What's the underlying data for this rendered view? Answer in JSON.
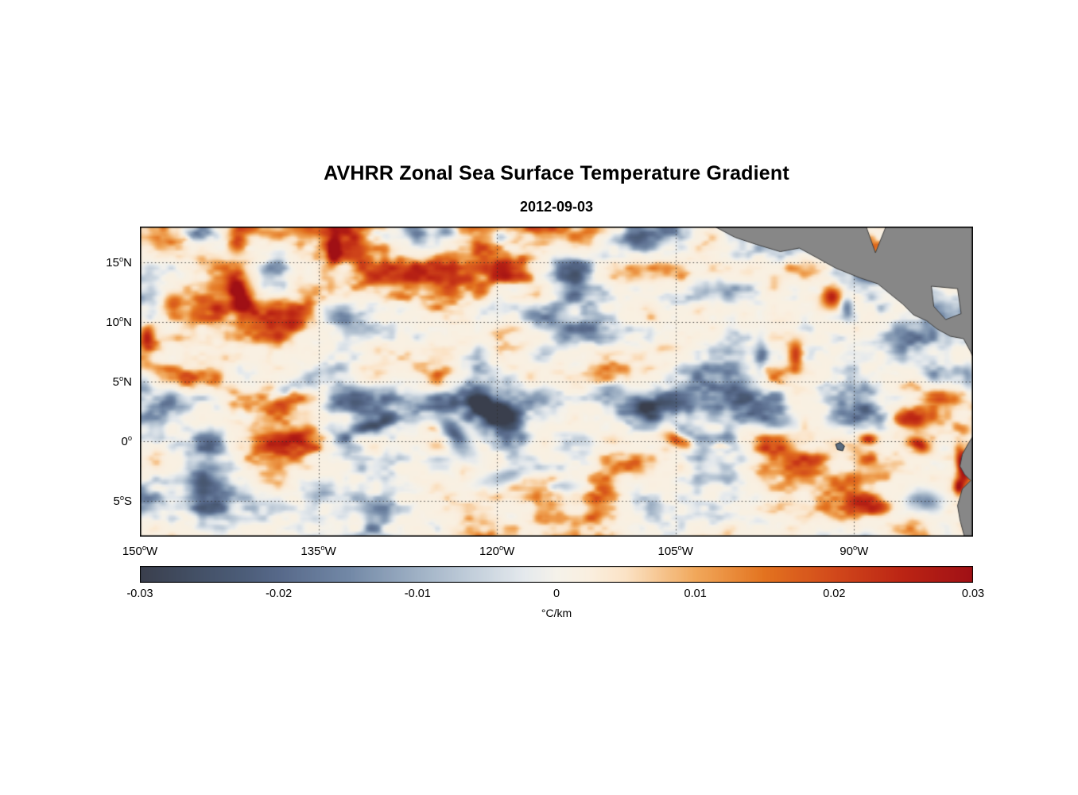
{
  "chart_data": {
    "type": "heatmap",
    "title": "AVHRR Zonal Sea Surface Temperature Gradient",
    "subtitle": "2012-09-03",
    "x_axis": {
      "min": -150,
      "max": -80,
      "ticks": [
        {
          "value": -150,
          "deg": "150",
          "sup": "o",
          "hem": "W"
        },
        {
          "value": -135,
          "deg": "135",
          "sup": "o",
          "hem": "W"
        },
        {
          "value": -120,
          "deg": "120",
          "sup": "o",
          "hem": "W"
        },
        {
          "value": -105,
          "deg": "105",
          "sup": "o",
          "hem": "W"
        },
        {
          "value": -90,
          "deg": "90",
          "sup": "o",
          "hem": "W"
        }
      ]
    },
    "y_axis": {
      "min": -8,
      "max": 18,
      "ticks": [
        {
          "value": 15,
          "deg": "15",
          "sup": "o",
          "hem": "N"
        },
        {
          "value": 10,
          "deg": "10",
          "sup": "o",
          "hem": "N"
        },
        {
          "value": 5,
          "deg": "5",
          "sup": "o",
          "hem": "N"
        },
        {
          "value": 0,
          "deg": "0",
          "sup": "o",
          "hem": ""
        },
        {
          "value": -5,
          "deg": "5",
          "sup": "o",
          "hem": "S"
        }
      ]
    },
    "grid": {
      "show": true,
      "style": "dotted",
      "lat_lines": [
        15,
        10,
        5,
        0,
        -5
      ],
      "lon_lines": [
        -150,
        -135,
        -120,
        -105,
        -90
      ]
    },
    "colorbar": {
      "min": -0.03,
      "max": 0.03,
      "label": "°C/km",
      "ticks": [
        {
          "value": -0.03,
          "label": "-0.03"
        },
        {
          "value": -0.02,
          "label": "-0.02"
        },
        {
          "value": -0.01,
          "label": "-0.01"
        },
        {
          "value": 0,
          "label": "0"
        },
        {
          "value": 0.01,
          "label": "0.01"
        },
        {
          "value": 0.02,
          "label": "0.02"
        },
        {
          "value": 0.03,
          "label": "0.03"
        }
      ],
      "stops": [
        {
          "t": 0.0,
          "color": "#3a3f4d"
        },
        {
          "t": 0.06,
          "color": "#424e63"
        },
        {
          "t": 0.125,
          "color": "#4c5d79"
        },
        {
          "t": 0.167,
          "color": "#57698a"
        },
        {
          "t": 0.25,
          "color": "#7288a6"
        },
        {
          "t": 0.333,
          "color": "#9fb1c5"
        },
        {
          "t": 0.4,
          "color": "#c3cfdb"
        },
        {
          "t": 0.46,
          "color": "#e4e9ed"
        },
        {
          "t": 0.5,
          "color": "#f5f2ea"
        },
        {
          "t": 0.54,
          "color": "#faefdf"
        },
        {
          "t": 0.583,
          "color": "#fbe3c6"
        },
        {
          "t": 0.667,
          "color": "#f1a85b"
        },
        {
          "t": 0.75,
          "color": "#e3731f"
        },
        {
          "t": 0.833,
          "color": "#d2491b"
        },
        {
          "t": 0.917,
          "color": "#bb2414"
        },
        {
          "t": 1.0,
          "color": "#a01015"
        }
      ]
    },
    "field": {
      "units": "°C/km",
      "range": [
        -0.03,
        0.03
      ],
      "base_bias": 0.0018,
      "amplitude": 0.034,
      "notable_features": [
        {
          "lon": -121.0,
          "lat": 2.8,
          "rx": 2.2,
          "ry": 1.0,
          "rot": -30,
          "amp": -0.028
        },
        {
          "lon": -123.5,
          "lat": 0.5,
          "rx": 2.0,
          "ry": 0.8,
          "rot": -55,
          "amp": -0.024
        },
        {
          "lon": -138.5,
          "lat": 3.9,
          "rx": 2.8,
          "ry": 0.55,
          "rot": 26,
          "amp": -0.014
        },
        {
          "lon": -130.5,
          "lat": 1.2,
          "rx": 1.6,
          "ry": 0.5,
          "rot": 20,
          "amp": -0.01
        },
        {
          "lon": -107.5,
          "lat": 2.9,
          "rx": 1.4,
          "ry": 0.9,
          "rot": -20,
          "amp": -0.024
        },
        {
          "lon": -110.6,
          "lat": 4.4,
          "rx": 1.1,
          "ry": 0.6,
          "rot": 0,
          "amp": -0.014
        },
        {
          "lon": -141.5,
          "lat": 12.2,
          "rx": 0.9,
          "ry": 1.7,
          "rot": 15,
          "amp": 0.026
        },
        {
          "lon": -141.8,
          "lat": 16.8,
          "rx": 0.8,
          "ry": 1.0,
          "rot": 0,
          "amp": 0.02
        },
        {
          "lon": -133.7,
          "lat": 16.1,
          "rx": 0.5,
          "ry": 1.2,
          "rot": 0,
          "amp": 0.026
        },
        {
          "lon": -130.4,
          "lat": 17.2,
          "rx": 1.0,
          "ry": 0.7,
          "rot": 0,
          "amp": -0.018
        },
        {
          "lon": -124.3,
          "lat": 17.6,
          "rx": 0.8,
          "ry": 0.5,
          "rot": 0,
          "amp": -0.016
        },
        {
          "lon": -119.6,
          "lat": 17.1,
          "rx": 1.0,
          "ry": 0.5,
          "rot": 0,
          "amp": -0.013
        },
        {
          "lon": -104.6,
          "lat": 0.1,
          "rx": 1.2,
          "ry": 0.5,
          "rot": -15,
          "amp": 0.026
        },
        {
          "lon": -101.2,
          "lat": -0.4,
          "rx": 0.8,
          "ry": 0.4,
          "rot": 0,
          "amp": 0.016
        },
        {
          "lon": -88.8,
          "lat": 0.2,
          "rx": 0.7,
          "ry": 0.4,
          "rot": 0,
          "amp": 0.022
        },
        {
          "lon": -84.6,
          "lat": -0.3,
          "rx": 0.9,
          "ry": 0.6,
          "rot": -20,
          "amp": 0.028
        },
        {
          "lon": -80.9,
          "lat": -2.0,
          "rx": 0.45,
          "ry": 1.3,
          "rot": 10,
          "amp": 0.034
        },
        {
          "lon": -81.2,
          "lat": -3.8,
          "rx": 0.4,
          "ry": 0.7,
          "rot": 0,
          "amp": 0.026
        },
        {
          "lon": -97.2,
          "lat": 1.9,
          "rx": 2.2,
          "ry": 0.6,
          "rot": -10,
          "amp": -0.014
        },
        {
          "lon": -97.8,
          "lat": 7.3,
          "rx": 0.5,
          "ry": 1.5,
          "rot": 0,
          "amp": -0.013
        },
        {
          "lon": -94.9,
          "lat": 7.2,
          "rx": 0.6,
          "ry": 1.2,
          "rot": 0,
          "amp": 0.022
        },
        {
          "lon": -91.9,
          "lat": 12.1,
          "rx": 0.8,
          "ry": 0.9,
          "rot": 0,
          "amp": 0.024
        },
        {
          "lon": -90.6,
          "lat": 11.2,
          "rx": 0.5,
          "ry": 0.9,
          "rot": 0,
          "amp": -0.018
        },
        {
          "lon": -80.4,
          "lat": 5.5,
          "rx": 0.5,
          "ry": 1.0,
          "rot": 0,
          "amp": -0.014
        },
        {
          "lon": -83.8,
          "lat": -5.0,
          "rx": 1.2,
          "ry": 0.8,
          "rot": -20,
          "amp": -0.016
        },
        {
          "lon": -119.5,
          "lat": -3.0,
          "rx": 2.0,
          "ry": 0.6,
          "rot": 15,
          "amp": -0.012
        },
        {
          "lon": -114.8,
          "lat": -3.8,
          "rx": 1.5,
          "ry": 0.5,
          "rot": 0,
          "amp": -0.01
        },
        {
          "lon": -149.4,
          "lat": 8.7,
          "rx": 0.6,
          "ry": 1.1,
          "rot": 0,
          "amp": 0.024
        },
        {
          "lon": -147.2,
          "lat": 11.5,
          "rx": 0.8,
          "ry": 0.8,
          "rot": 0,
          "amp": 0.016
        },
        {
          "lon": -145.4,
          "lat": 17.3,
          "rx": 1.0,
          "ry": 0.5,
          "rot": 0,
          "amp": -0.016
        }
      ]
    },
    "land": {
      "color": "#878787",
      "outline": "#3f3f3f",
      "central_america": [
        [
          -101.8,
          18.05
        ],
        [
          -100.0,
          17.1
        ],
        [
          -98.2,
          16.5
        ],
        [
          -96.2,
          15.9
        ],
        [
          -94.6,
          16.2
        ],
        [
          -93.5,
          15.6
        ],
        [
          -91.5,
          14.5
        ],
        [
          -89.5,
          13.7
        ],
        [
          -88.0,
          13.2
        ],
        [
          -86.9,
          12.3
        ],
        [
          -85.9,
          11.5
        ],
        [
          -85.0,
          10.6
        ],
        [
          -83.9,
          10.1
        ],
        [
          -83.0,
          9.4
        ],
        [
          -81.9,
          8.8
        ],
        [
          -80.8,
          8.6
        ],
        [
          -80.2,
          7.5
        ],
        [
          -79.9,
          6.8
        ],
        [
          -79.9,
          18.05
        ]
      ],
      "central_america_holes": [
        [
          [
            -89.0,
            18.05
          ],
          [
            -88.2,
            15.8
          ],
          [
            -87.3,
            18.05
          ]
        ],
        [
          [
            -83.5,
            13.0
          ],
          [
            -81.3,
            12.8
          ],
          [
            -81.0,
            10.7
          ],
          [
            -82.3,
            10.2
          ],
          [
            -83.3,
            11.3
          ]
        ]
      ],
      "south_america": [
        [
          -79.9,
          0.6
        ],
        [
          -80.4,
          -0.2
        ],
        [
          -80.9,
          -1.1
        ],
        [
          -81.1,
          -2.1
        ],
        [
          -80.7,
          -2.8
        ],
        [
          -80.2,
          -3.3
        ],
        [
          -80.9,
          -4.0
        ],
        [
          -81.3,
          -5.4
        ],
        [
          -81.1,
          -6.6
        ],
        [
          -80.7,
          -8.1
        ],
        [
          -79.9,
          -8.1
        ]
      ],
      "galapagos": [
        [
          -91.55,
          -0.25
        ],
        [
          -91.15,
          -0.1
        ],
        [
          -90.8,
          -0.4
        ],
        [
          -90.95,
          -0.8
        ],
        [
          -91.4,
          -0.7
        ]
      ]
    }
  }
}
